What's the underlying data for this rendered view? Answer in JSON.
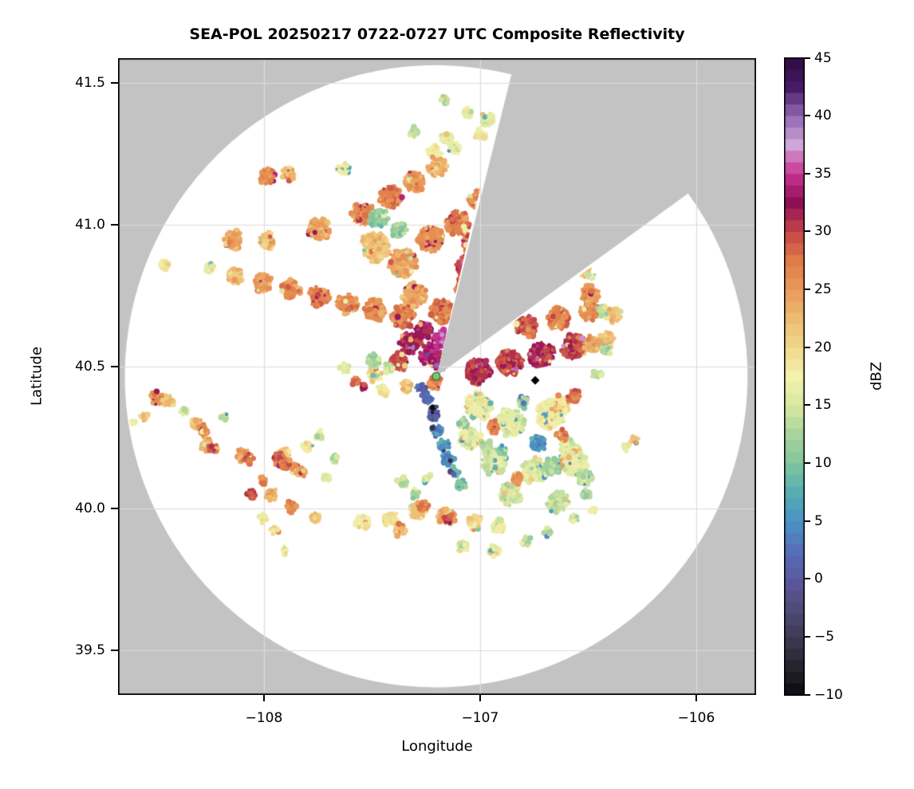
{
  "chart_data": {
    "type": "radar_ppi_composite_reflectivity",
    "title": "SEA-POL 20250217 0722-0727 UTC Composite Reflectivity",
    "xlabel": "Longitude",
    "ylabel": "Latitude",
    "xlim": [
      -108.675,
      -105.723
    ],
    "ylim": [
      39.343,
      41.587
    ],
    "xticks": [
      -108,
      -107,
      -106
    ],
    "yticks": [
      41.5,
      41.0,
      40.5,
      40.0,
      39.5
    ],
    "grid": true,
    "grid_color": "#dcdcdc",
    "axes_bg_color": "#c3c3c3",
    "coverage_color": "#ffffff",
    "frame_color": "#000000",
    "radar": {
      "lon": -107.203,
      "lat": 40.466,
      "range_km": 122,
      "blocked_azimuth_deg": [
        14,
        54
      ],
      "marker": "circle",
      "marker_color": "#7cc46b",
      "marker_edge": "#2e6b2e"
    },
    "site_marker": {
      "lon": -106.745,
      "lat": 40.452,
      "shape": "diamond",
      "color": "#000000"
    },
    "colorbar": {
      "label": "dBZ",
      "min": -10,
      "max": 45,
      "ticks": [
        45,
        40,
        35,
        30,
        25,
        20,
        15,
        10,
        5,
        0,
        -5,
        -10
      ],
      "colormap_stops": [
        [
          -10,
          "#0b0a10"
        ],
        [
          -7.5,
          "#27242f"
        ],
        [
          -5,
          "#3e3a55"
        ],
        [
          -2.5,
          "#504b78"
        ],
        [
          0,
          "#5c58a0"
        ],
        [
          2.5,
          "#5570bb"
        ],
        [
          5,
          "#4b93c4"
        ],
        [
          7.5,
          "#57adb2"
        ],
        [
          10,
          "#82c59f"
        ],
        [
          12.5,
          "#a8d39c"
        ],
        [
          15,
          "#d9e8a2"
        ],
        [
          17.5,
          "#f4f1ad"
        ],
        [
          20,
          "#f0d88c"
        ],
        [
          22.5,
          "#edbb72"
        ],
        [
          25,
          "#e9995a"
        ],
        [
          27.5,
          "#df7b48"
        ],
        [
          30,
          "#c24549"
        ],
        [
          32.5,
          "#8f0f55"
        ],
        [
          35,
          "#c73390"
        ],
        [
          37.5,
          "#cfa6d8"
        ],
        [
          40,
          "#9168b2"
        ],
        [
          42.5,
          "#481964"
        ],
        [
          45,
          "#2d0d42"
        ]
      ]
    },
    "echo_format": [
      "lon",
      "lat",
      "radius_km",
      "dbz"
    ],
    "echoes": [
      [
        -108.14,
        40.949,
        3.8,
        24
      ],
      [
        -107.985,
        40.944,
        3.1,
        22
      ],
      [
        -108.133,
        40.817,
        3.4,
        22
      ],
      [
        -108.004,
        40.795,
        3.8,
        25
      ],
      [
        -107.875,
        40.772,
        3.8,
        26
      ],
      [
        -107.745,
        40.747,
        4.1,
        27
      ],
      [
        -107.616,
        40.722,
        4.1,
        26
      ],
      [
        -107.487,
        40.699,
        4.4,
        26
      ],
      [
        -107.358,
        40.677,
        4.7,
        27
      ],
      [
        -107.745,
        40.986,
        4.4,
        24
      ],
      [
        -107.542,
        41.039,
        4.4,
        26
      ],
      [
        -107.413,
        41.098,
        4.4,
        27
      ],
      [
        -107.303,
        41.152,
        4.1,
        25
      ],
      [
        -107.199,
        41.202,
        3.8,
        23
      ],
      [
        -107.985,
        41.169,
        3.4,
        26
      ],
      [
        -107.886,
        41.18,
        2.8,
        22
      ],
      [
        -107.635,
        41.197,
        2.5,
        18
      ],
      [
        -107.21,
        41.258,
        2.8,
        18
      ],
      [
        -107.155,
        41.301,
        2.5,
        16
      ],
      [
        -107.487,
        40.921,
        5.6,
        22
      ],
      [
        -107.358,
        40.865,
        5.6,
        24
      ],
      [
        -107.229,
        40.949,
        5.0,
        26
      ],
      [
        -107.1,
        41.006,
        4.7,
        27
      ],
      [
        -107.007,
        41.09,
        4.1,
        26
      ],
      [
        -107.044,
        40.935,
        3.8,
        28
      ],
      [
        -107.063,
        40.851,
        4.4,
        29
      ],
      [
        -107.044,
        40.725,
        4.7,
        30
      ],
      [
        -107.063,
        40.781,
        4.7,
        28
      ],
      [
        -107.173,
        40.697,
        5.0,
        27
      ],
      [
        -107.303,
        40.753,
        4.7,
        24
      ],
      [
        -107.376,
        40.978,
        3.1,
        12
      ],
      [
        -107.469,
        41.02,
        4.1,
        11
      ],
      [
        -107.303,
        41.329,
        2.2,
        13
      ],
      [
        -106.963,
        41.371,
        2.8,
        16
      ],
      [
        -107.321,
        40.584,
        4.4,
        32
      ],
      [
        -107.229,
        40.542,
        4.4,
        34
      ],
      [
        -107.266,
        40.626,
        3.8,
        33
      ],
      [
        -107.173,
        40.598,
        3.8,
        35
      ],
      [
        -107.199,
        40.522,
        3.8,
        33
      ],
      [
        -107.376,
        40.514,
        3.8,
        30
      ],
      [
        -107.21,
        40.444,
        2.8,
        27
      ],
      [
        -107.339,
        40.43,
        2.5,
        22
      ],
      [
        -107.007,
        40.486,
        5.0,
        31
      ],
      [
        -106.86,
        40.514,
        5.0,
        30
      ],
      [
        -106.712,
        40.542,
        5.0,
        31
      ],
      [
        -106.565,
        40.57,
        5.0,
        30
      ],
      [
        -106.41,
        40.596,
        3.1,
        22
      ],
      [
        -106.483,
        40.579,
        3.4,
        24
      ],
      [
        -106.638,
        40.669,
        4.4,
        27
      ],
      [
        -106.491,
        40.697,
        4.1,
        26
      ],
      [
        -106.786,
        40.64,
        4.4,
        28
      ],
      [
        -106.491,
        40.753,
        3.8,
        25
      ],
      [
        -106.527,
        40.846,
        3.1,
        22
      ],
      [
        -106.38,
        40.683,
        3.1,
        22
      ],
      [
        -107.007,
        40.36,
        5.6,
        17
      ],
      [
        -106.86,
        40.303,
        5.6,
        16
      ],
      [
        -106.675,
        40.331,
        5.6,
        17
      ],
      [
        -106.638,
        40.36,
        4.4,
        18
      ],
      [
        -106.583,
        40.205,
        4.4,
        16
      ],
      [
        -106.565,
        40.163,
        5.0,
        16
      ],
      [
        -106.749,
        40.135,
        5.0,
        15
      ],
      [
        -106.934,
        40.163,
        5.0,
        16
      ],
      [
        -107.044,
        40.247,
        4.4,
        16
      ],
      [
        -106.86,
        40.051,
        4.4,
        15
      ],
      [
        -106.638,
        40.022,
        4.4,
        14
      ],
      [
        -106.51,
        40.107,
        3.1,
        14
      ],
      [
        -106.934,
        40.289,
        2.5,
        26
      ],
      [
        -106.83,
        40.107,
        2.5,
        25
      ],
      [
        -106.638,
        40.149,
        2.2,
        24
      ],
      [
        -106.288,
        40.242,
        1.9,
        22
      ],
      [
        -106.325,
        40.214,
        1.6,
        18
      ],
      [
        -106.565,
        40.396,
        2.8,
        28
      ],
      [
        -106.62,
        40.261,
        2.5,
        27
      ],
      [
        -106.731,
        40.233,
        3.4,
        5
      ],
      [
        -106.664,
        40.149,
        3.4,
        12
      ],
      [
        -106.804,
        40.374,
        2.5,
        12
      ],
      [
        -106.97,
        40.219,
        2.5,
        13
      ],
      [
        -107.081,
        40.303,
        2.2,
        12
      ],
      [
        -106.897,
        40.205,
        1.9,
        8
      ],
      [
        -106.487,
        40.817,
        1.6,
        14
      ],
      [
        -106.435,
        40.697,
        2.2,
        14
      ],
      [
        -106.417,
        40.556,
        1.9,
        13
      ],
      [
        -106.461,
        40.472,
        1.9,
        14
      ],
      [
        -106.51,
        40.051,
        2.2,
        13
      ],
      [
        -106.565,
        39.966,
        1.9,
        14
      ],
      [
        -106.472,
        39.994,
        1.6,
        15
      ],
      [
        -107.244,
        40.388,
        2.5,
        2
      ],
      [
        -107.218,
        40.331,
        2.5,
        0
      ],
      [
        -107.21,
        40.354,
        0.9,
        -8
      ],
      [
        -107.196,
        40.275,
        2.5,
        4
      ],
      [
        -107.17,
        40.225,
        2.5,
        6
      ],
      [
        -107.148,
        40.177,
        2.5,
        4
      ],
      [
        -107.137,
        40.169,
        0.9,
        -6
      ],
      [
        -107.118,
        40.129,
        2.2,
        8
      ],
      [
        -107.092,
        40.084,
        2.2,
        10
      ],
      [
        -107.277,
        40.424,
        1.9,
        1
      ],
      [
        -107.627,
        40.494,
        2.2,
        16
      ],
      [
        -107.572,
        40.449,
        1.9,
        28
      ],
      [
        -107.542,
        40.43,
        1.6,
        31
      ],
      [
        -107.487,
        40.472,
        2.8,
        20
      ],
      [
        -107.45,
        40.416,
        2.5,
        18
      ],
      [
        -107.494,
        40.522,
        2.8,
        12
      ],
      [
        -107.421,
        40.494,
        2.5,
        14
      ],
      [
        -107.542,
        39.952,
        3.1,
        18
      ],
      [
        -107.413,
        39.966,
        3.1,
        20
      ],
      [
        -107.284,
        39.994,
        3.4,
        22
      ],
      [
        -107.155,
        39.972,
        3.4,
        24
      ],
      [
        -107.148,
        39.963,
        1.9,
        30
      ],
      [
        -107.026,
        39.952,
        3.1,
        20
      ],
      [
        -106.915,
        39.938,
        2.8,
        17
      ],
      [
        -107.266,
        40.008,
        2.5,
        26
      ],
      [
        -107.376,
        39.924,
        2.5,
        22
      ],
      [
        -107.081,
        39.868,
        2.5,
        15
      ],
      [
        -106.934,
        39.854,
        2.5,
        16
      ],
      [
        -106.786,
        39.882,
        2.2,
        14
      ],
      [
        -106.683,
        39.916,
        1.9,
        13
      ],
      [
        -107.358,
        40.093,
        2.2,
        14
      ],
      [
        -107.303,
        40.051,
        1.9,
        12
      ],
      [
        -107.247,
        40.107,
        1.9,
        15
      ],
      [
        -108.494,
        40.388,
        2.8,
        25
      ],
      [
        -108.439,
        40.379,
        2.5,
        22
      ],
      [
        -108.557,
        40.326,
        1.9,
        20
      ],
      [
        -108.31,
        40.295,
        2.5,
        22
      ],
      [
        -108.28,
        40.275,
        2.5,
        26
      ],
      [
        -108.269,
        40.225,
        2.5,
        24
      ],
      [
        -108.232,
        40.211,
        2.2,
        29
      ],
      [
        -108.096,
        40.191,
        2.8,
        24
      ],
      [
        -108.07,
        40.177,
        2.2,
        28
      ],
      [
        -107.911,
        40.197,
        2.5,
        20
      ],
      [
        -107.93,
        40.171,
        2.8,
        28
      ],
      [
        -107.9,
        40.154,
        2.5,
        28
      ],
      [
        -107.856,
        40.143,
        2.2,
        25
      ],
      [
        -108.181,
        40.326,
        1.6,
        14
      ],
      [
        -108.373,
        40.346,
        1.9,
        16
      ],
      [
        -108.059,
        40.051,
        2.2,
        29
      ],
      [
        -108.004,
        40.098,
        1.9,
        26
      ],
      [
        -107.83,
        40.129,
        2.2,
        24
      ],
      [
        -107.967,
        40.051,
        2.5,
        24
      ],
      [
        -107.875,
        40.008,
        2.5,
        26
      ],
      [
        -107.764,
        39.966,
        2.2,
        22
      ],
      [
        -108.004,
        39.966,
        1.9,
        18
      ],
      [
        -107.948,
        39.925,
        1.9,
        18
      ],
      [
        -107.904,
        39.854,
        1.6,
        16
      ],
      [
        -107.708,
        40.107,
        1.9,
        16
      ],
      [
        -107.672,
        40.177,
        1.9,
        14
      ],
      [
        -107.801,
        40.219,
        2.2,
        18
      ],
      [
        -107.745,
        40.261,
        1.9,
        15
      ],
      [
        -108.601,
        40.303,
        1.3,
        18
      ],
      [
        -108.465,
        40.857,
        1.9,
        18
      ],
      [
        -108.255,
        40.846,
        2.2,
        16
      ],
      [
        -107.162,
        41.441,
        1.9,
        14
      ],
      [
        -107.063,
        41.399,
        2.2,
        16
      ],
      [
        -107.0,
        41.315,
        2.2,
        18
      ],
      [
        -107.118,
        41.272,
        2.5,
        17
      ]
    ]
  },
  "ui": {
    "xtick_labels": [
      "−108",
      "−107",
      "−106"
    ],
    "ytick_labels": [
      "41.5",
      "41.0",
      "40.5",
      "40.0",
      "39.5"
    ],
    "cbar_tick_labels": [
      "45",
      "40",
      "35",
      "30",
      "25",
      "20",
      "15",
      "10",
      "5",
      "0",
      "−5",
      "−10"
    ]
  }
}
